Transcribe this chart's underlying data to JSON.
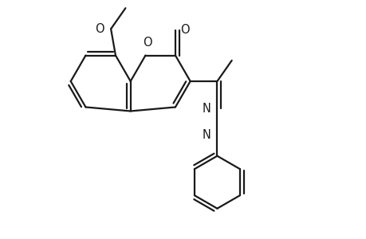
{
  "background_color": "#ffffff",
  "line_color": "#1a1a1a",
  "line_width": 1.6,
  "dbo": 0.1,
  "xlim": [
    0,
    10
  ],
  "ylim": [
    0,
    6.5
  ],
  "figsize": [
    4.6,
    3.0
  ],
  "dpi": 100,
  "label_fontsize": 10.5
}
